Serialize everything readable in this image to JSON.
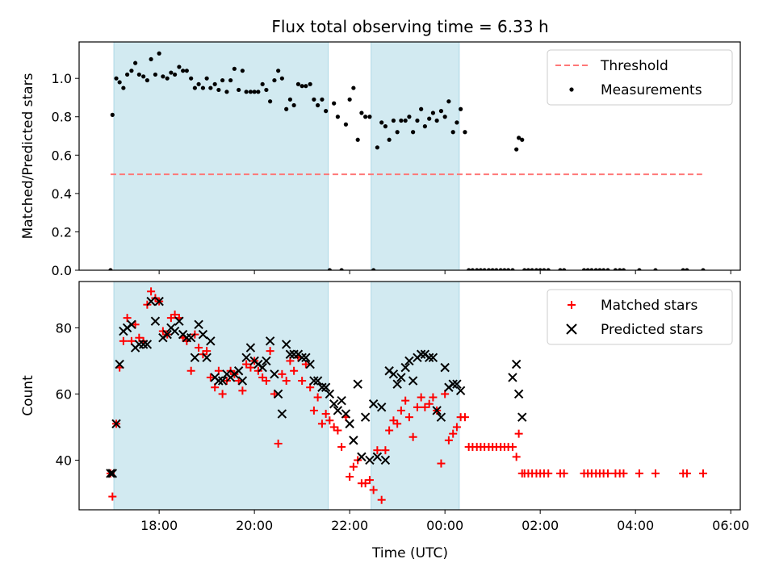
{
  "chart_data": {
    "title": "Flux total observing time = 6.33 h",
    "xlabel": "Time (UTC)",
    "x_unit": "hours after 00:00 UTC of first night",
    "xlim": [
      16.32,
      30.2
    ],
    "xticks": [
      {
        "value": 18,
        "label": "18:00"
      },
      {
        "value": 20,
        "label": "20:00"
      },
      {
        "value": 22,
        "label": "22:00"
      },
      {
        "value": 24,
        "label": "00:00"
      },
      {
        "value": 26,
        "label": "02:00"
      },
      {
        "value": 28,
        "label": "04:00"
      },
      {
        "value": 30,
        "label": "06:00"
      }
    ],
    "shaded_intervals": [
      [
        17.05,
        21.55
      ],
      [
        22.45,
        24.3
      ]
    ],
    "shade_color": "#add8e6",
    "panels": [
      {
        "type": "scatter",
        "ylabel": "Matched/Predicted stars",
        "ylim": [
          0,
          1.19
        ],
        "yticks": [
          "0.0",
          "0.2",
          "0.4",
          "0.6",
          "0.8",
          "1.0"
        ],
        "threshold": {
          "name": "Threshold",
          "value": 0.5,
          "x_range": [
            16.98,
            29.4
          ],
          "color": "#ff7777"
        },
        "legend": {
          "position": "top-right",
          "entries": [
            "Threshold",
            "Measurements"
          ]
        },
        "series": [
          {
            "name": "Measurements",
            "color": "#000000",
            "x": [
              16.98,
              17.02,
              17.1,
              17.17,
              17.25,
              17.33,
              17.42,
              17.5,
              17.58,
              17.67,
              17.75,
              17.83,
              17.92,
              18.0,
              18.08,
              18.17,
              18.25,
              18.33,
              18.42,
              18.5,
              18.58,
              18.67,
              18.75,
              18.83,
              18.92,
              19.0,
              19.08,
              19.17,
              19.25,
              19.33,
              19.42,
              19.5,
              19.58,
              19.67,
              19.75,
              19.83,
              19.92,
              20.0,
              20.08,
              20.17,
              20.25,
              20.33,
              20.42,
              20.5,
              20.58,
              20.67,
              20.75,
              20.83,
              20.92,
              21.0,
              21.08,
              21.17,
              21.25,
              21.33,
              21.42,
              21.5,
              21.58,
              21.67,
              21.75,
              21.83,
              21.92,
              22.0,
              22.08,
              22.17,
              22.25,
              22.33,
              22.42,
              22.5,
              22.58,
              22.67,
              22.75,
              22.83,
              22.92,
              23.0,
              23.08,
              23.17,
              23.25,
              23.33,
              23.42,
              23.5,
              23.58,
              23.67,
              23.75,
              23.83,
              23.92,
              24.0,
              24.08,
              24.17,
              24.25,
              24.33,
              24.42,
              24.5,
              24.58,
              24.67,
              24.75,
              24.83,
              24.92,
              25.0,
              25.08,
              25.17,
              25.25,
              25.33,
              25.42,
              25.5,
              25.55,
              25.62,
              25.67,
              25.75,
              25.83,
              25.92,
              26.0,
              26.08,
              26.17,
              26.42,
              26.5,
              26.92,
              27.0,
              27.08,
              27.17,
              27.25,
              27.33,
              27.42,
              27.58,
              27.67,
              27.75,
              28.08,
              28.42,
              29.0,
              29.08,
              29.42
            ],
            "y": [
              0.0,
              0.81,
              1.0,
              0.98,
              0.95,
              1.02,
              1.04,
              1.08,
              1.02,
              1.01,
              0.99,
              1.1,
              1.02,
              1.13,
              1.01,
              1.0,
              1.03,
              1.02,
              1.06,
              1.04,
              1.04,
              1.0,
              0.95,
              0.97,
              0.95,
              1.0,
              0.95,
              0.97,
              0.94,
              0.99,
              0.93,
              0.99,
              1.05,
              0.94,
              1.04,
              0.93,
              0.93,
              0.93,
              0.93,
              0.97,
              0.94,
              0.88,
              0.99,
              1.04,
              1.0,
              0.84,
              0.89,
              0.86,
              0.97,
              0.96,
              0.96,
              0.97,
              0.89,
              0.86,
              0.89,
              0.83,
              0.0,
              0.87,
              0.8,
              0.0,
              0.76,
              0.89,
              0.95,
              0.68,
              0.82,
              0.8,
              0.8,
              0.0,
              0.64,
              0.77,
              0.75,
              0.68,
              0.78,
              0.72,
              0.78,
              0.78,
              0.8,
              0.72,
              0.78,
              0.84,
              0.75,
              0.79,
              0.82,
              0.78,
              0.83,
              0.8,
              0.88,
              0.72,
              0.77,
              0.84,
              0.72,
              0.0,
              0.0,
              0.0,
              0.0,
              0.0,
              0.0,
              0.0,
              0.0,
              0.0,
              0.0,
              0.0,
              0.0,
              0.63,
              0.69,
              0.68,
              0.0,
              0.0,
              0.0,
              0.0,
              0.0,
              0.0,
              0.0,
              0.0,
              0.0,
              0.0,
              0.0,
              0.0,
              0.0,
              0.0,
              0.0,
              0.0,
              0.0,
              0.0,
              0.0,
              0.0,
              0.0,
              0.0,
              0.0,
              0.0
            ]
          }
        ]
      },
      {
        "type": "scatter",
        "ylabel": "Count",
        "ylim": [
          25,
          94
        ],
        "yticks": [
          "40",
          "60",
          "80"
        ],
        "legend": {
          "position": "top-right",
          "entries": [
            "Matched stars",
            "Predicted stars"
          ]
        },
        "series": [
          {
            "name": "Matched stars",
            "marker": "+",
            "color": "#ff0000",
            "x": [
              16.98,
              17.02,
              17.1,
              17.17,
              17.25,
              17.33,
              17.42,
              17.5,
              17.58,
              17.67,
              17.75,
              17.83,
              17.92,
              18.0,
              18.08,
              18.17,
              18.25,
              18.33,
              18.42,
              18.5,
              18.58,
              18.67,
              18.75,
              18.83,
              18.92,
              19.0,
              19.08,
              19.17,
              19.25,
              19.33,
              19.42,
              19.5,
              19.58,
              19.67,
              19.75,
              19.83,
              19.92,
              20.0,
              20.08,
              20.17,
              20.25,
              20.33,
              20.42,
              20.5,
              20.58,
              20.67,
              20.75,
              20.83,
              20.92,
              21.0,
              21.08,
              21.17,
              21.25,
              21.33,
              21.42,
              21.5,
              21.58,
              21.67,
              21.75,
              21.83,
              21.92,
              22.0,
              22.08,
              22.17,
              22.25,
              22.33,
              22.42,
              22.5,
              22.58,
              22.67,
              22.75,
              22.83,
              22.92,
              23.0,
              23.08,
              23.17,
              23.25,
              23.33,
              23.42,
              23.5,
              23.58,
              23.67,
              23.75,
              23.83,
              23.92,
              24.0,
              24.08,
              24.17,
              24.25,
              24.33,
              24.42,
              24.5,
              24.58,
              24.67,
              24.75,
              24.83,
              24.92,
              25.0,
              25.08,
              25.17,
              25.25,
              25.33,
              25.42,
              25.5,
              25.55,
              25.62,
              25.67,
              25.75,
              25.83,
              25.92,
              26.0,
              26.08,
              26.17,
              26.42,
              26.5,
              26.92,
              27.0,
              27.08,
              27.17,
              27.25,
              27.33,
              27.42,
              27.58,
              27.67,
              27.75,
              28.08,
              28.42,
              29.0,
              29.08,
              29.42
            ],
            "y": [
              36,
              29,
              51,
              68,
              76,
              83,
              76,
              81,
              77,
              76,
              87,
              91,
              89,
              88,
              79,
              78,
              83,
              84,
              83,
              77,
              76,
              67,
              78,
              74,
              72,
              73,
              65,
              62,
              67,
              60,
              64,
              67,
              66,
              64,
              61,
              69,
              68,
              70,
              67,
              65,
              64,
              73,
              60,
              45,
              66,
              64,
              70,
              67,
              71,
              64,
              69,
              62,
              55,
              59,
              51,
              54,
              52,
              50,
              49,
              44,
              53,
              35,
              38,
              40,
              33,
              33,
              34,
              31,
              43,
              28,
              43,
              49,
              52,
              51,
              55,
              58,
              53,
              47,
              56,
              59,
              56,
              57,
              59,
              55,
              39,
              60,
              46,
              48,
              50,
              53,
              53,
              44,
              44,
              44,
              44,
              44,
              44,
              44,
              44,
              44,
              44,
              44,
              44,
              41,
              48,
              36,
              36,
              36,
              36,
              36,
              36,
              36,
              36,
              36,
              36,
              36,
              36,
              36,
              36,
              36,
              36,
              36,
              36,
              36,
              36,
              36,
              36,
              36,
              36,
              36
            ]
          },
          {
            "name": "Predicted stars",
            "marker": "x",
            "color": "#000000",
            "x": [
              16.98,
              17.02,
              17.1,
              17.17,
              17.25,
              17.33,
              17.42,
              17.5,
              17.58,
              17.67,
              17.75,
              17.83,
              17.92,
              18.0,
              18.08,
              18.17,
              18.25,
              18.33,
              18.42,
              18.5,
              18.58,
              18.67,
              18.75,
              18.83,
              18.92,
              19.0,
              19.08,
              19.17,
              19.25,
              19.33,
              19.42,
              19.5,
              19.58,
              19.67,
              19.75,
              19.83,
              19.92,
              20.0,
              20.08,
              20.17,
              20.25,
              20.33,
              20.42,
              20.5,
              20.58,
              20.67,
              20.75,
              20.83,
              20.92,
              21.0,
              21.08,
              21.17,
              21.25,
              21.33,
              21.42,
              21.5,
              21.58,
              21.67,
              21.75,
              21.83,
              21.92,
              22.0,
              22.08,
              22.17,
              22.25,
              22.33,
              22.42,
              22.5,
              22.58,
              22.67,
              22.75,
              22.83,
              22.92,
              23.0,
              23.08,
              23.17,
              23.25,
              23.33,
              23.42,
              23.5,
              23.58,
              23.67,
              23.75,
              23.83,
              23.92,
              24.0,
              24.08,
              24.17,
              24.25,
              24.33,
              25.42,
              25.5,
              25.55,
              25.62
            ],
            "y": [
              36,
              36,
              51,
              69,
              79,
              80,
              81,
              74,
              75,
              75,
              75,
              88,
              82,
              88,
              77,
              78,
              80,
              79,
              82,
              78,
              77,
              77,
              71,
              81,
              78,
              71,
              76,
              65,
              64,
              64,
              66,
              65,
              66,
              67,
              64,
              71,
              74,
              70,
              69,
              68,
              70,
              76,
              66,
              60,
              54,
              75,
              72,
              72,
              72,
              71,
              71,
              69,
              64,
              64,
              62,
              62,
              60,
              57,
              55,
              58,
              54,
              51,
              46,
              63,
              41,
              53,
              40,
              57,
              41,
              56,
              40,
              67,
              66,
              63,
              65,
              68,
              70,
              64,
              71,
              72,
              72,
              71,
              71,
              55,
              53,
              68,
              62,
              63,
              63,
              61,
              65,
              69,
              60,
              53
            ]
          }
        ]
      }
    ]
  }
}
